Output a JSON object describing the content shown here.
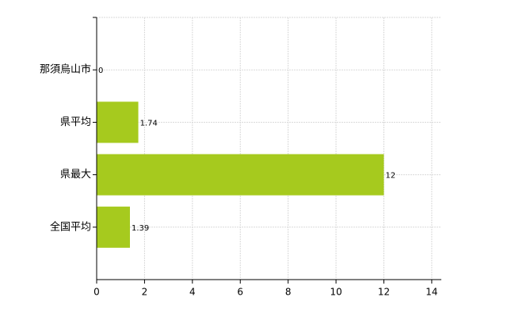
{
  "chart_data": {
    "type": "barh",
    "categories": [
      "那須烏山市",
      "県平均",
      "県最大",
      "全国平均"
    ],
    "values": [
      0,
      1.74,
      12,
      1.39
    ],
    "color": "#a6ca1e",
    "xlim": [
      0,
      14.4
    ],
    "xticks": [
      0,
      2,
      4,
      6,
      8,
      10,
      12,
      14
    ],
    "grid": true
  }
}
